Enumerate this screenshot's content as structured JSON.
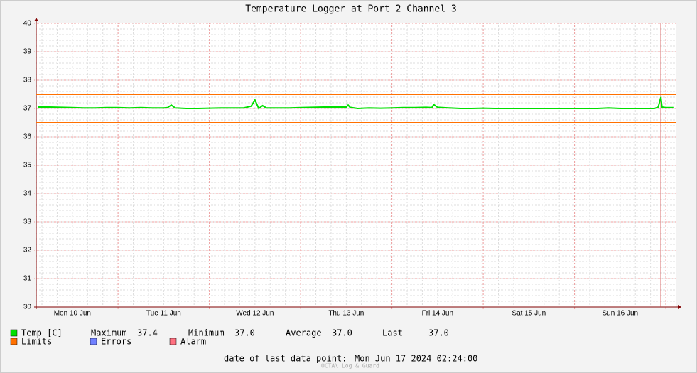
{
  "chart_data": {
    "type": "line",
    "title": "Temperature Logger at Port 2 Channel 3",
    "x": [
      3,
      6,
      9,
      12,
      15,
      18,
      21,
      24,
      27,
      30,
      33,
      36,
      37,
      38,
      39,
      42,
      45,
      48,
      51,
      54,
      57,
      59,
      60,
      61,
      62,
      63,
      66,
      69,
      72,
      75,
      78,
      81,
      84,
      84.5,
      85,
      87,
      90,
      93,
      96,
      99,
      102,
      105,
      106.5,
      107,
      108,
      111,
      114,
      117,
      120,
      123,
      126,
      129,
      132,
      135,
      138,
      141,
      144,
      147,
      150,
      153,
      156,
      159,
      162,
      165,
      166,
      166.7,
      167,
      168,
      170
    ],
    "series": [
      {
        "name": "Temp [C]",
        "color": "#00e000",
        "values": [
          37.05,
          37.05,
          37.04,
          37.03,
          37.02,
          37.02,
          37.03,
          37.03,
          37.02,
          37.03,
          37.02,
          37.02,
          37.03,
          37.12,
          37.02,
          37.0,
          37.0,
          37.01,
          37.02,
          37.02,
          37.02,
          37.08,
          37.3,
          37.0,
          37.1,
          37.02,
          37.02,
          37.02,
          37.03,
          37.04,
          37.05,
          37.05,
          37.05,
          37.12,
          37.04,
          37.0,
          37.02,
          37.01,
          37.02,
          37.03,
          37.03,
          37.04,
          37.03,
          37.14,
          37.04,
          37.02,
          37.0,
          37.0,
          37.01,
          37.0,
          37.0,
          37.0,
          37.0,
          37.0,
          37.0,
          37.0,
          37.0,
          37.0,
          37.0,
          37.02,
          37.0,
          37.0,
          37.0,
          37.0,
          37.05,
          37.4,
          37.05,
          37.03,
          37.03
        ]
      }
    ],
    "limits": {
      "name": "Limits",
      "color": "#ff7000",
      "values": [
        37.5,
        36.5
      ]
    },
    "legend_extra": [
      {
        "name": "Errors",
        "color": "#7080ff"
      },
      {
        "name": "Alarm",
        "color": "#ff7080"
      }
    ],
    "stats": [
      {
        "name": "Maximum",
        "value": 37.4,
        "label": "37.4"
      },
      {
        "name": "Minimum",
        "value": 37.0,
        "label": "37.0"
      },
      {
        "name": "Average",
        "value": 37.0,
        "label": "37.0"
      },
      {
        "name": "Last",
        "value": 37.0,
        "label": "37.0"
      }
    ],
    "vrule": {
      "x": 166.7,
      "color": "#d04040"
    },
    "xlim": [
      2.5,
      170.6
    ],
    "xticks": [
      {
        "value": 12,
        "label": "Mon 10 Jun"
      },
      {
        "value": 36,
        "label": "Tue 11 Jun"
      },
      {
        "value": 60,
        "label": "Wed 12 Jun"
      },
      {
        "value": 84,
        "label": "Thu 13 Jun"
      },
      {
        "value": 108,
        "label": "Fri 14 Jun"
      },
      {
        "value": 132,
        "label": "Sat 15 Jun"
      },
      {
        "value": 156,
        "label": "Sun 16 Jun"
      }
    ],
    "x_major_grid": [
      24,
      48,
      72,
      96,
      120,
      144,
      168
    ],
    "x_minor_step": 4,
    "ylim": [
      30,
      40
    ],
    "yticks": [
      30,
      31,
      32,
      33,
      34,
      35,
      36,
      37,
      38,
      39,
      40
    ],
    "y_minor_step": 0.2,
    "grid": true,
    "footer_label": "date of last data point:",
    "footer_date": "Mon Jun 17 2024 02:24:00",
    "watermark": "OCTA\\ Log & Guard"
  }
}
